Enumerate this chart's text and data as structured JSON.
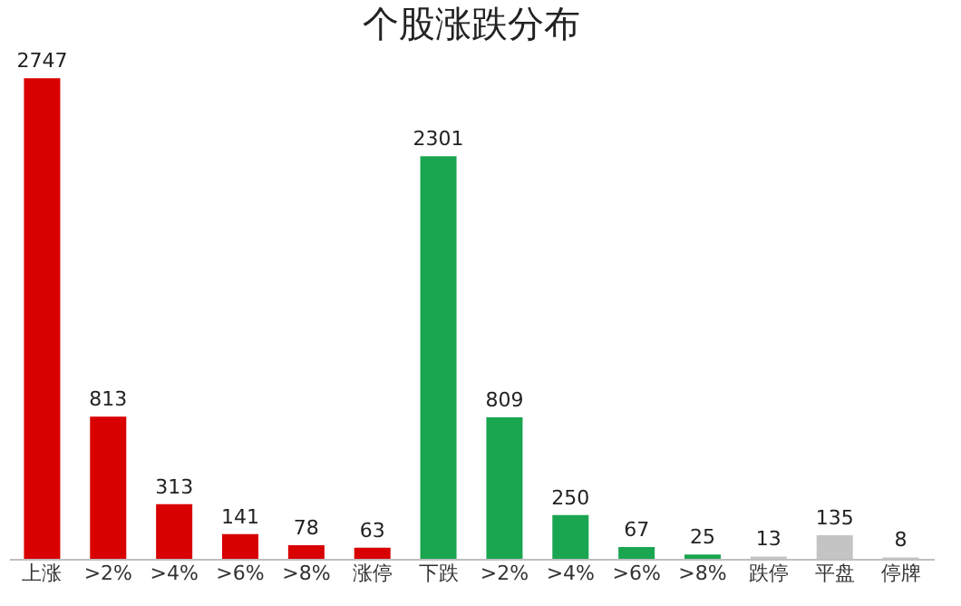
{
  "chart_data": {
    "type": "bar",
    "title": "个股涨跌分布",
    "categories": [
      "上涨",
      ">2%",
      ">4%",
      ">6%",
      ">8%",
      "涨停",
      "下跌",
      ">2%",
      ">4%",
      ">6%",
      ">8%",
      "跌停",
      "平盘",
      "停牌"
    ],
    "values": [
      2747,
      813,
      313,
      141,
      78,
      63,
      2301,
      809,
      250,
      67,
      25,
      13,
      135,
      8
    ],
    "colors": [
      "#d80000",
      "#d80000",
      "#d80000",
      "#d80000",
      "#d80000",
      "#d80000",
      "#1aa550",
      "#1aa550",
      "#1aa550",
      "#1aa550",
      "#1aa550",
      "#c4c4c4",
      "#c4c4c4",
      "#c4c4c4"
    ],
    "data_labels": true,
    "grid": false
  }
}
